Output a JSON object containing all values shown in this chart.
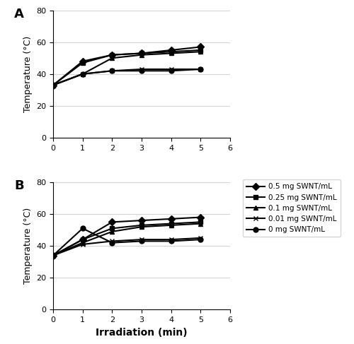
{
  "panel_A": {
    "label": "A",
    "series": [
      {
        "label": "0.5 mg SWNT/mL",
        "marker": "D",
        "x": [
          0,
          1,
          2,
          3,
          4,
          5
        ],
        "y": [
          33,
          48,
          52,
          53,
          55,
          57
        ]
      },
      {
        "label": "0.25 mg SWNT/mL",
        "marker": "s",
        "x": [
          0,
          1,
          2,
          3,
          4,
          5
        ],
        "y": [
          33,
          47,
          52,
          53,
          54,
          55
        ]
      },
      {
        "label": "0.1 mg SWNT/mL",
        "marker": "^",
        "x": [
          0,
          1,
          2,
          3,
          4,
          5
        ],
        "y": [
          33,
          40,
          50,
          52,
          53,
          54
        ]
      },
      {
        "label": "0.01 mg SWNT/mL",
        "marker": "x",
        "x": [
          0,
          1,
          2,
          3,
          4,
          5
        ],
        "y": [
          33,
          40,
          42,
          43,
          43,
          43
        ]
      },
      {
        "label": "0 mg SWNT/mL",
        "marker": "o",
        "x": [
          0,
          1,
          2,
          3,
          4,
          5
        ],
        "y": [
          33,
          40,
          42,
          42,
          42,
          43
        ]
      }
    ]
  },
  "panel_B": {
    "label": "B",
    "series": [
      {
        "label": "0.5 mg SWNT/mL",
        "marker": "D",
        "x": [
          0,
          1,
          2,
          3,
          4,
          5
        ],
        "y": [
          34,
          44,
          55,
          56,
          57,
          58
        ]
      },
      {
        "label": "0.25 mg SWNT/mL",
        "marker": "s",
        "x": [
          0,
          1,
          2,
          3,
          4,
          5
        ],
        "y": [
          34,
          44,
          51,
          53,
          54,
          55
        ]
      },
      {
        "label": "0.1 mg SWNT/mL",
        "marker": "^",
        "x": [
          0,
          1,
          2,
          3,
          4,
          5
        ],
        "y": [
          34,
          42,
          49,
          52,
          53,
          54
        ]
      },
      {
        "label": "0.01 mg SWNT/mL",
        "marker": "x",
        "x": [
          0,
          1,
          2,
          3,
          4,
          5
        ],
        "y": [
          34,
          41,
          43,
          44,
          44,
          45
        ]
      },
      {
        "label": "0 mg SWNT/mL",
        "marker": "o",
        "x": [
          0,
          1,
          2,
          3,
          4,
          5
        ],
        "y": [
          34,
          51,
          42,
          43,
          43,
          44
        ]
      }
    ]
  },
  "ylabel": "Temperature (°C)",
  "xlabel": "Irradiation (min)",
  "xlim": [
    0,
    6
  ],
  "ylim": [
    0,
    80
  ],
  "yticks": [
    0,
    20,
    40,
    60,
    80
  ],
  "xticks": [
    0,
    1,
    2,
    3,
    4,
    5,
    6
  ],
  "line_color": "#000000",
  "markersize": 5,
  "linewidth": 1.5
}
